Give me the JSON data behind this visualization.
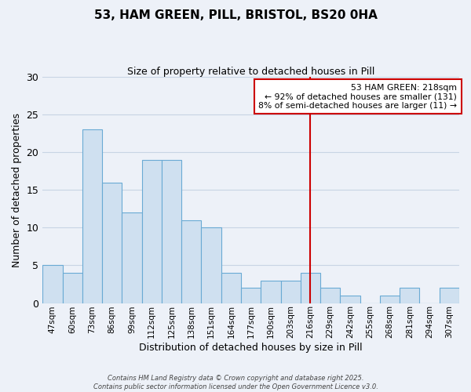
{
  "title": "53, HAM GREEN, PILL, BRISTOL, BS20 0HA",
  "subtitle": "Size of property relative to detached houses in Pill",
  "xlabel": "Distribution of detached houses by size in Pill",
  "ylabel": "Number of detached properties",
  "bar_labels": [
    "47sqm",
    "60sqm",
    "73sqm",
    "86sqm",
    "99sqm",
    "112sqm",
    "125sqm",
    "138sqm",
    "151sqm",
    "164sqm",
    "177sqm",
    "190sqm",
    "203sqm",
    "216sqm",
    "229sqm",
    "242sqm",
    "255sqm",
    "268sqm",
    "281sqm",
    "294sqm",
    "307sqm"
  ],
  "bar_values": [
    5,
    4,
    23,
    16,
    12,
    19,
    19,
    11,
    10,
    4,
    2,
    3,
    3,
    4,
    2,
    1,
    0,
    1,
    2,
    0,
    2
  ],
  "bar_color": "#cfe0f0",
  "bar_edge_color": "#6aaad4",
  "vline_x": 13,
  "vline_color": "#cc0000",
  "annotation_title": "53 HAM GREEN: 218sqm",
  "annotation_line1": "← 92% of detached houses are smaller (131)",
  "annotation_line2": "8% of semi-detached houses are larger (11) →",
  "annotation_box_color": "#cc0000",
  "annotation_bg": "#ffffff",
  "ylim": [
    0,
    30
  ],
  "yticks": [
    0,
    5,
    10,
    15,
    20,
    25,
    30
  ],
  "grid_color": "#c8d4e4",
  "bg_color": "#edf1f8",
  "footer1": "Contains HM Land Registry data © Crown copyright and database right 2025.",
  "footer2": "Contains public sector information licensed under the Open Government Licence v3.0."
}
